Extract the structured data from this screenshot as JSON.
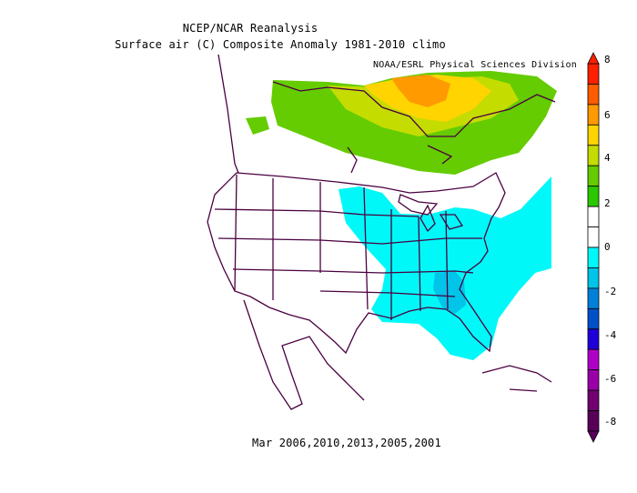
{
  "header": {
    "title": "NCEP/NCAR Reanalysis",
    "subtitle": "Surface air (C) Composite Anomaly 1981-2010 climo",
    "credit": "NOAA/ESRL Physical Sciences Division"
  },
  "footer": {
    "caption": "Mar 2006,2010,2013,2005,2001"
  },
  "colorbar": {
    "labels": [
      "8",
      "6",
      "4",
      "2",
      "0",
      "-2",
      "-4",
      "-6",
      "-8"
    ],
    "colors": [
      "#ff2000",
      "#ff5c00",
      "#ff9a00",
      "#ffd400",
      "#c4dc00",
      "#64cc00",
      "#2ac800",
      "#ffffff",
      "#ffffff",
      "#00f8f8",
      "#00c4e8",
      "#0080d8",
      "#0050c8",
      "#2000d8",
      "#b000c8",
      "#9a00a8",
      "#700070",
      "#580058"
    ]
  },
  "map": {
    "region": "North America",
    "shading": [
      {
        "area": "Canada",
        "anomaly_range": "2 to 7",
        "color": "#64cc00"
      },
      {
        "area": "Eastern United States / Southeast",
        "anomaly_range": "-1 to -3",
        "color": "#00f8f8"
      }
    ]
  }
}
